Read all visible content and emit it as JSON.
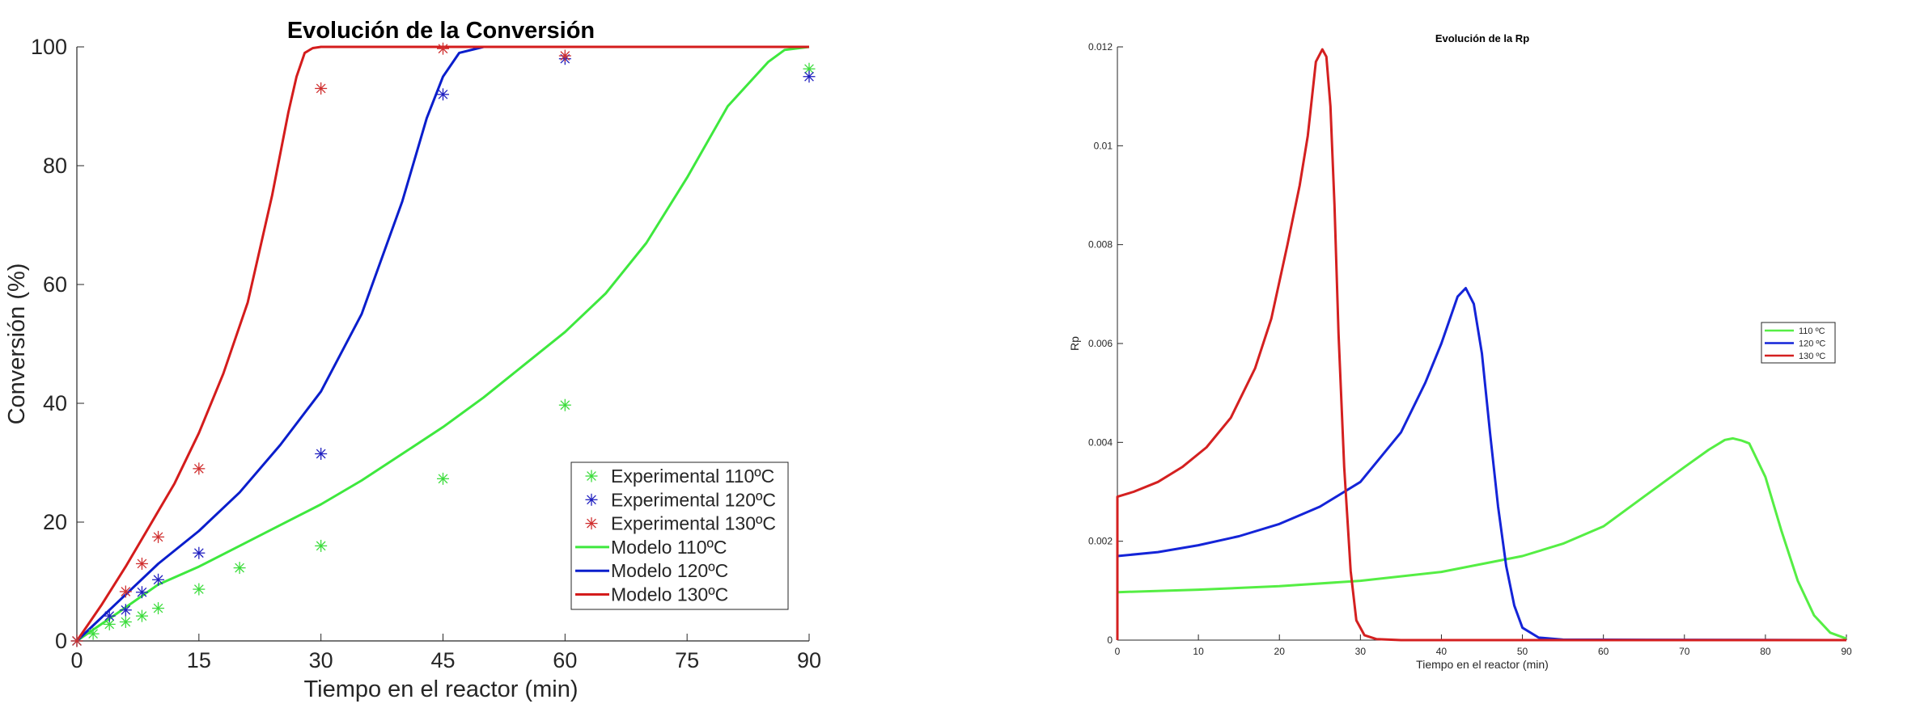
{
  "chart_data": [
    {
      "type": "scatter+line",
      "title": "Evolución de la Conversión",
      "xlabel": "Tiempo en el reactor (min)",
      "ylabel": "Conversión (%)",
      "xlim": [
        0,
        90
      ],
      "ylim": [
        0,
        100
      ],
      "xticks": [
        0,
        15,
        30,
        45,
        60,
        75,
        90
      ],
      "yticks": [
        0,
        20,
        40,
        60,
        80,
        100
      ],
      "grid": false,
      "legend_position": "bottom-right",
      "scatter_series": [
        {
          "name": "Experimental 110ºC",
          "color": "#3ddc3d",
          "marker": "asterisk",
          "x": [
            0,
            2,
            4,
            6,
            8,
            10,
            15,
            20,
            30,
            45,
            60,
            90
          ],
          "y": [
            0,
            1.2,
            2.8,
            3.2,
            4.2,
            5.5,
            8.7,
            12.3,
            16,
            27.3,
            39.7,
            96.3
          ]
        },
        {
          "name": "Experimental 120ºC",
          "color": "#2020c0",
          "marker": "asterisk",
          "x": [
            0,
            4,
            6,
            8,
            10,
            15,
            30,
            45,
            60,
            90
          ],
          "y": [
            0,
            4.2,
            5.2,
            8.2,
            10.3,
            14.8,
            31.5,
            92,
            98,
            95
          ]
        },
        {
          "name": "Experimental 130ºC",
          "color": "#d03030",
          "marker": "asterisk",
          "x": [
            0,
            6,
            8,
            10,
            15,
            30,
            45,
            60
          ],
          "y": [
            0,
            8.3,
            13,
            17.5,
            29,
            93,
            99.7,
            98.5
          ]
        }
      ],
      "line_series": [
        {
          "name": "Modelo 110ºC",
          "color": "#3ee83e",
          "x": [
            0,
            5,
            10,
            15,
            20,
            25,
            30,
            35,
            40,
            45,
            50,
            55,
            60,
            65,
            70,
            75,
            80,
            85,
            87,
            90
          ],
          "y": [
            0,
            4.7,
            9.5,
            12.5,
            16,
            19.5,
            23,
            27,
            31.5,
            36,
            41,
            46.5,
            52,
            58.5,
            67,
            78,
            90,
            97.5,
            99.5,
            100
          ]
        },
        {
          "name": "Modelo 120ºC",
          "color": "#0a1ecc",
          "x": [
            0,
            5,
            10,
            15,
            20,
            25,
            30,
            35,
            40,
            43,
            45,
            47,
            50,
            90
          ],
          "y": [
            0,
            6.5,
            13,
            18.5,
            25,
            33,
            42,
            55,
            74,
            88,
            95,
            99,
            100,
            100
          ]
        },
        {
          "name": "Modelo 130ºC",
          "color": "#d41c1c",
          "x": [
            0,
            3,
            6,
            9,
            12,
            15,
            18,
            21,
            24,
            26,
            27,
            28,
            29,
            30,
            90
          ],
          "y": [
            0,
            6,
            12.5,
            19.5,
            26.5,
            35,
            45,
            57,
            75,
            89,
            95,
            99,
            99.8,
            100,
            100
          ]
        }
      ]
    },
    {
      "type": "line",
      "title": "Evolución de la Rp",
      "xlabel": "Tiempo en el reactor (min)",
      "ylabel": "Rp",
      "xlim": [
        0,
        90
      ],
      "ylim": [
        0,
        0.012
      ],
      "xticks": [
        0,
        10,
        20,
        30,
        40,
        50,
        60,
        70,
        80,
        90
      ],
      "yticks": [
        0,
        0.002,
        0.004,
        0.006,
        0.008,
        0.01,
        0.012
      ],
      "ytick_labels": [
        "0",
        "0.002",
        "0.004",
        "0.006",
        "0.008",
        "0.01",
        "0.012"
      ],
      "grid": false,
      "legend_position": "right",
      "series": [
        {
          "name": "110 ºC",
          "color": "#55ee44",
          "x": [
            0,
            10,
            20,
            30,
            40,
            50,
            55,
            60,
            65,
            70,
            73,
            75,
            76,
            77,
            78,
            80,
            82,
            84,
            86,
            88,
            90
          ],
          "y": [
            0.00097,
            0.00102,
            0.00109,
            0.0012,
            0.00138,
            0.0017,
            0.00195,
            0.0023,
            0.0029,
            0.0035,
            0.00385,
            0.00405,
            0.00408,
            0.00404,
            0.00398,
            0.0033,
            0.0022,
            0.0012,
            0.0005,
            0.00015,
            3e-05
          ]
        },
        {
          "name": "120 ºC",
          "color": "#1424d8",
          "x": [
            0,
            5,
            10,
            15,
            20,
            25,
            30,
            35,
            38,
            40,
            42,
            43,
            44,
            45,
            46,
            47,
            48,
            49,
            50,
            52,
            55,
            90
          ],
          "y": [
            0.0017,
            0.00178,
            0.00192,
            0.0021,
            0.00235,
            0.0027,
            0.0032,
            0.0042,
            0.0052,
            0.006,
            0.00695,
            0.00712,
            0.0068,
            0.0058,
            0.0042,
            0.0027,
            0.0015,
            0.0007,
            0.00025,
            5e-05,
            1e-05,
            0
          ]
        },
        {
          "name": "130 ºC",
          "color": "#d42020",
          "x": [
            0,
            0,
            2,
            5,
            8,
            11,
            14,
            17,
            19,
            21,
            22.5,
            23.5,
            24.5,
            25.3,
            25.8,
            26.3,
            26.8,
            27.3,
            28,
            28.8,
            29.5,
            30.5,
            32,
            35,
            90
          ],
          "y": [
            0,
            0.0029,
            0.003,
            0.0032,
            0.0035,
            0.0039,
            0.0045,
            0.0055,
            0.0065,
            0.008,
            0.0092,
            0.0102,
            0.0117,
            0.01195,
            0.0118,
            0.0108,
            0.0088,
            0.0062,
            0.0035,
            0.0014,
            0.0004,
            0.0001,
            2e-05,
            0,
            0
          ]
        }
      ]
    }
  ]
}
